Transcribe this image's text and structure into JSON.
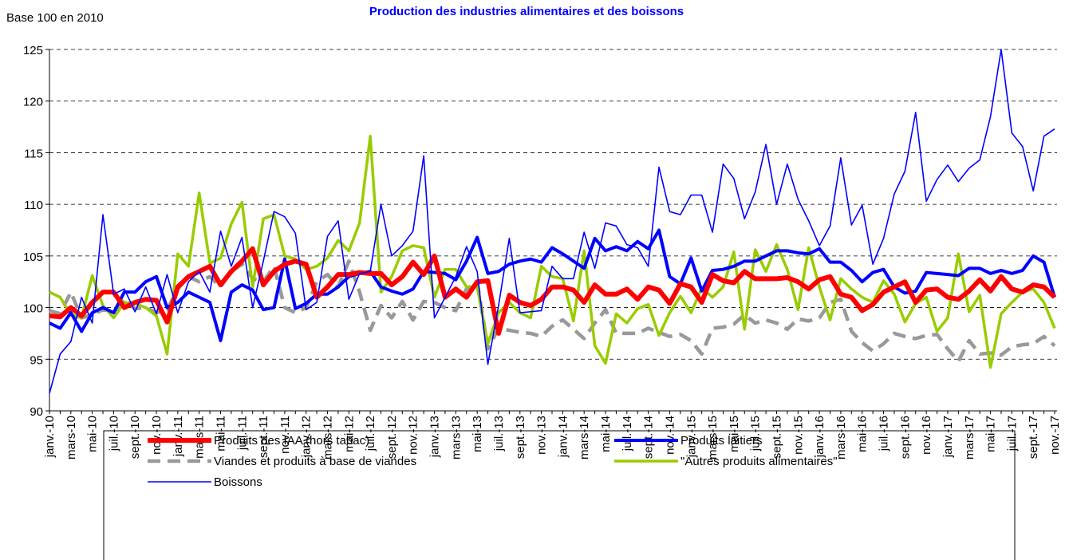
{
  "chart_data": {
    "type": "line",
    "title": "Production des industries alimentaires et des boissons",
    "y_label": "Base 100 en 2010",
    "categories": [
      "janv.-10",
      null,
      "mars-10",
      null,
      "mai-10",
      null,
      "juil.-10",
      null,
      "sept.-10",
      null,
      "nov.-10",
      null,
      "janv.-11",
      null,
      "mars-11",
      null,
      "mai-11",
      null,
      "juil.-11",
      null,
      "sept.-11",
      null,
      "nov.-11",
      null,
      "janv.-12",
      null,
      "mars-12",
      null,
      "mai-12",
      null,
      "juil.-12",
      null,
      "sept.-12",
      null,
      "nov.-12",
      null,
      "janv.-13",
      null,
      "mars-13",
      null,
      "mai-13",
      null,
      "juil.-13",
      null,
      "sept.-13",
      null,
      "nov.-13",
      null,
      "janv.-14",
      null,
      "mars-14",
      null,
      "mai-14",
      null,
      "juil.-14",
      null,
      "sept.-14",
      null,
      "nov.-14",
      null,
      "janv.-15",
      null,
      "mars-15",
      null,
      "mai-15",
      null,
      "juil.-15",
      null,
      "sept.-15",
      null,
      "nov.-15",
      null,
      "janv.-16",
      null,
      "mars-16",
      null,
      "mai-16",
      null,
      "juil.-16",
      null,
      "sept.-16",
      null,
      "nov.-16",
      null,
      "janv.-17",
      null,
      "mars-17",
      null,
      "mai-17",
      null,
      "juil.-17",
      null,
      "sept.-17",
      null,
      "nov.-17"
    ],
    "series": [
      {
        "name": "Produits des IAA (hors tabac)",
        "color": "#ff0000",
        "values": [
          99.2,
          99.1,
          100.0,
          99.2,
          100.5,
          101.5,
          101.5,
          100.0,
          100.5,
          100.8,
          100.7,
          98.6,
          102.0,
          103.0,
          103.5,
          104.0,
          102.2,
          103.5,
          104.5,
          105.7,
          102.2,
          103.5,
          104.2,
          104.5,
          104.2,
          101.0,
          102.0,
          103.2,
          103.2,
          103.4,
          103.3,
          103.3,
          102.2,
          103.0,
          104.4,
          103.2,
          105.0,
          101.0,
          101.8,
          101.0,
          102.5,
          102.6,
          97.5,
          101.2,
          100.5,
          100.2,
          100.8,
          102.0,
          102.0,
          101.7,
          100.5,
          102.2,
          101.3,
          101.3,
          101.8,
          100.8,
          102.0,
          101.7,
          100.4,
          102.3,
          102.0,
          100.5,
          103.2,
          102.6,
          102.4,
          103.5,
          102.8,
          102.8,
          102.8,
          102.9,
          102.5,
          101.8,
          102.7,
          103.0,
          101.3,
          101.0,
          99.7,
          100.3,
          101.5,
          102.0,
          102.5,
          100.5,
          101.7,
          101.8,
          101.0,
          100.8,
          101.6,
          102.7,
          101.6,
          103.0,
          101.8,
          101.5,
          102.2,
          102.0,
          101.0
        ]
      },
      {
        "name": "Produits laitiers",
        "color": "#0000ff",
        "values": [
          98.5,
          98.0,
          99.5,
          97.7,
          99.5,
          100.0,
          99.5,
          101.5,
          101.5,
          102.5,
          103.0,
          100.0,
          100.5,
          101.5,
          101.0,
          100.5,
          96.8,
          101.5,
          102.2,
          101.7,
          99.8,
          100.0,
          104.7,
          99.9,
          100.4,
          101.3,
          101.3,
          102.0,
          103.0,
          103.3,
          103.5,
          102.0,
          101.6,
          101.3,
          101.8,
          103.5,
          103.4,
          103.3,
          102.7,
          104.5,
          106.8,
          103.3,
          103.5,
          104.2,
          104.5,
          104.7,
          104.4,
          105.8,
          105.2,
          104.5,
          103.8,
          106.7,
          105.5,
          105.9,
          105.5,
          106.4,
          105.7,
          107.5,
          103.0,
          102.3,
          104.8,
          101.6,
          103.6,
          103.7,
          104.0,
          104.5,
          104.5,
          105.0,
          105.5,
          105.5,
          105.3,
          105.2,
          105.7,
          104.4,
          104.4,
          103.6,
          102.5,
          103.4,
          103.7,
          102.0,
          101.4,
          101.6,
          103.4,
          103.3,
          103.2,
          103.1,
          103.8,
          103.8,
          103.3,
          103.6,
          103.3,
          103.6,
          105.0,
          104.4,
          101.0
        ]
      },
      {
        "name": "Viandes et produits à base de viandes",
        "color": "#999999",
        "values": [
          99.7,
          99.4,
          101.5,
          99.0,
          99.3,
          99.8,
          99.6,
          100.7,
          99.9,
          100.0,
          99.5,
          99.8,
          101.8,
          103.0,
          102.5,
          103.0,
          102.0,
          103.5,
          104.2,
          102.8,
          102.5,
          104.0,
          100.0,
          99.5,
          100.0,
          102.5,
          103.2,
          102.0,
          104.5,
          101.5,
          97.8,
          100.2,
          99.0,
          100.6,
          98.8,
          100.6,
          100.5,
          100.0,
          99.7,
          101.8,
          102.5,
          96.0,
          98.0,
          97.8,
          97.6,
          97.5,
          97.2,
          98.2,
          98.8,
          97.9,
          97.0,
          98.5,
          99.8,
          97.5,
          97.5,
          97.5,
          98.0,
          97.6,
          97.2,
          97.4,
          96.8,
          95.5,
          98.0,
          98.1,
          98.4,
          99.3,
          98.5,
          98.8,
          98.5,
          97.9,
          98.9,
          98.7,
          99.0,
          100.5,
          100.8,
          97.7,
          96.6,
          95.8,
          96.5,
          97.5,
          97.2,
          97.0,
          97.3,
          97.4,
          96.0,
          94.8,
          96.8,
          95.5,
          95.6,
          95.4,
          96.2,
          96.4,
          96.5,
          97.2,
          96.3
        ]
      },
      {
        "name": "\"Autres produits alimentaires\"",
        "color": "#99cc00",
        "values": [
          101.5,
          101.0,
          99.3,
          99.0,
          103.1,
          100.2,
          99.0,
          100.5,
          100.4,
          100.0,
          99.2,
          95.5,
          105.2,
          104.0,
          111.1,
          104.3,
          104.8,
          108.1,
          110.2,
          102.0,
          108.6,
          109.0,
          105.0,
          104.7,
          103.7,
          104.0,
          104.8,
          106.5,
          105.5,
          108.2,
          116.6,
          101.5,
          103.0,
          105.5,
          106.0,
          105.8,
          101.0,
          103.7,
          103.7,
          102.0,
          102.0,
          96.5,
          99.5,
          100.5,
          99.5,
          99.0,
          104.0,
          103.0,
          102.8,
          98.7,
          105.5,
          96.3,
          94.6,
          99.4,
          98.5,
          99.9,
          100.3,
          97.3,
          99.5,
          101.1,
          99.5,
          101.9,
          101.0,
          102.0,
          105.4,
          97.9,
          105.6,
          103.5,
          106.1,
          103.7,
          99.8,
          105.8,
          102.0,
          98.8,
          102.8,
          101.8,
          101.0,
          100.5,
          102.6,
          101.3,
          98.6,
          100.4,
          101.0,
          97.7,
          99.0,
          105.2,
          99.6,
          101.2,
          94.2,
          99.4,
          100.5,
          101.5,
          101.8,
          100.5,
          98.0
        ]
      },
      {
        "name": "Boissons",
        "color": "#0000ff",
        "values": [
          91.7,
          95.5,
          96.7,
          101.0,
          98.5,
          109.0,
          101.3,
          101.8,
          99.6,
          102.0,
          99.4,
          103.2,
          99.5,
          102.5,
          103.5,
          101.5,
          107.4,
          104.0,
          106.8,
          100.0,
          104.5,
          109.3,
          108.8,
          107.2,
          99.8,
          100.5,
          106.9,
          108.4,
          100.8,
          103.3,
          103.5,
          110.0,
          105.0,
          106.0,
          107.4,
          114.7,
          99.0,
          101.0,
          103.0,
          105.9,
          103.5,
          94.5,
          100.2,
          106.7,
          99.5,
          99.6,
          99.7,
          104.0,
          102.8,
          102.8,
          107.3,
          103.8,
          108.2,
          107.9,
          106.1,
          105.8,
          104.0,
          113.6,
          109.3,
          109.0,
          110.9,
          110.9,
          107.3,
          113.9,
          112.5,
          108.6,
          111.2,
          115.8,
          110.0,
          113.9,
          110.5,
          108.4,
          106.0,
          107.9,
          114.5,
          108.0,
          109.9,
          104.2,
          106.7,
          111.0,
          113.2,
          118.9,
          110.3,
          112.4,
          113.8,
          112.2,
          113.5,
          114.3,
          118.5,
          125.0,
          116.9,
          115.6,
          111.3,
          116.6,
          117.3
        ]
      }
    ],
    "ylim": [
      90,
      125
    ],
    "yticks": [
      90,
      95,
      100,
      105,
      110,
      115,
      120,
      125
    ],
    "grid": true
  }
}
